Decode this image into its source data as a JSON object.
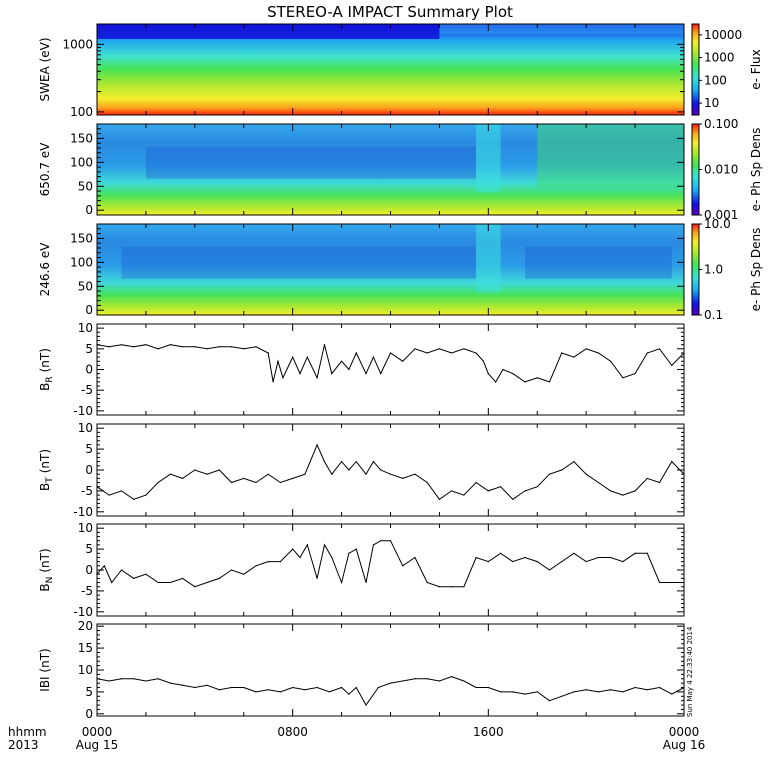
{
  "title": "STEREO-A IMPACT Summary Plot",
  "time_axis": {
    "row1_label": "hhmm",
    "row2_label": "2013",
    "ticks": [
      {
        "time": "0000",
        "date": "Aug 15",
        "hours": 0
      },
      {
        "time": "0800",
        "date": "",
        "hours": 8
      },
      {
        "time": "1600",
        "date": "",
        "hours": 16
      },
      {
        "time": "0000",
        "date": "Aug 16",
        "hours": 24
      }
    ]
  },
  "timestamp": "Sun May  4 22:33:40 2014",
  "colors": {
    "axes": "#000000",
    "line": "#000000"
  },
  "chart_data": [
    {
      "type": "heatmap",
      "ylabel": "SWEA (eV)",
      "yscale": "log",
      "ylim": [
        90,
        2000
      ],
      "yticks": [
        {
          "value": 100,
          "label": "100"
        },
        {
          "value": 1000,
          "label": "1000"
        }
      ],
      "colorbar": {
        "label": "e- Flux",
        "scale": "log",
        "range": [
          3,
          30000
        ],
        "ticks": [
          {
            "value": 10,
            "label": "10"
          },
          {
            "value": 100,
            "label": "100"
          },
          {
            "value": 1000,
            "label": "1000"
          },
          {
            "value": 10000,
            "label": "10000"
          }
        ]
      },
      "x_hours": [
        0,
        24
      ]
    },
    {
      "type": "heatmap",
      "ylabel": "650.7 eV",
      "yscale": "linear",
      "ylim": [
        -10,
        180
      ],
      "yticks": [
        {
          "value": 0,
          "label": "0"
        },
        {
          "value": 50,
          "label": "50"
        },
        {
          "value": 100,
          "label": "100"
        },
        {
          "value": 150,
          "label": "150"
        }
      ],
      "colorbar": {
        "label": "e- Ph Sp Dens",
        "scale": "log",
        "range": [
          0.001,
          0.1
        ],
        "ticks": [
          {
            "value": 0.001,
            "label": "0.001"
          },
          {
            "value": 0.01,
            "label": "0.010"
          },
          {
            "value": 0.1,
            "label": "0.100"
          }
        ]
      },
      "x_hours": [
        0,
        24
      ]
    },
    {
      "type": "heatmap",
      "ylabel": "246.6 eV",
      "yscale": "linear",
      "ylim": [
        -10,
        180
      ],
      "yticks": [
        {
          "value": 0,
          "label": "0"
        },
        {
          "value": 50,
          "label": "50"
        },
        {
          "value": 100,
          "label": "100"
        },
        {
          "value": 150,
          "label": "150"
        }
      ],
      "colorbar": {
        "label": "e- Ph Sp Dens",
        "scale": "log",
        "range": [
          0.1,
          10
        ],
        "ticks": [
          {
            "value": 0.1,
            "label": "0.1"
          },
          {
            "value": 1,
            "label": "1.0"
          },
          {
            "value": 10,
            "label": "10.0"
          }
        ]
      },
      "x_hours": [
        0,
        24
      ]
    },
    {
      "type": "line",
      "ylabel": "B_R (nT)",
      "ylabel_main": "B",
      "ylabel_sub": "R",
      "ylabel_unit": "(nT)",
      "ylim": [
        -11,
        11
      ],
      "yticks": [
        {
          "value": -10,
          "label": "-10"
        },
        {
          "value": -5,
          "label": "-5"
        },
        {
          "value": 0,
          "label": "0"
        },
        {
          "value": 5,
          "label": "5"
        },
        {
          "value": 10,
          "label": "10"
        }
      ],
      "x": [
        0,
        0.5,
        1,
        1.5,
        2,
        2.5,
        3,
        3.5,
        4,
        4.5,
        5,
        5.5,
        6,
        6.5,
        7,
        7.2,
        7.4,
        7.6,
        8,
        8.3,
        8.6,
        9,
        9.3,
        9.6,
        10,
        10.3,
        10.6,
        11,
        11.3,
        11.6,
        12,
        12.5,
        13,
        13.5,
        14,
        14.5,
        15,
        15.5,
        15.8,
        16,
        16.3,
        16.6,
        17,
        17.5,
        18,
        18.5,
        19,
        19.5,
        20,
        20.5,
        21,
        21.5,
        22,
        22.5,
        23,
        23.5,
        24
      ],
      "y": [
        6,
        5.5,
        6,
        5.5,
        6,
        5,
        6,
        5.5,
        5.5,
        5,
        5.5,
        5.5,
        5,
        5.5,
        4,
        -3,
        2,
        -2,
        3,
        -1,
        3,
        -2,
        6,
        -1,
        2,
        0,
        4,
        -1,
        3,
        -1,
        4,
        2,
        5,
        4,
        5,
        4,
        5,
        4,
        2,
        -1,
        -3,
        0,
        -1,
        -3,
        -2,
        -3,
        4,
        3,
        5,
        4,
        2,
        -2,
        -1,
        4,
        5,
        1,
        4
      ]
    },
    {
      "type": "line",
      "ylabel": "B_T (nT)",
      "ylabel_main": "B",
      "ylabel_sub": "T",
      "ylabel_unit": "(nT)",
      "ylim": [
        -11,
        11
      ],
      "yticks": [
        {
          "value": -10,
          "label": "-10"
        },
        {
          "value": -5,
          "label": "-5"
        },
        {
          "value": 0,
          "label": "0"
        },
        {
          "value": 5,
          "label": "5"
        },
        {
          "value": 10,
          "label": "10"
        }
      ],
      "x": [
        0,
        0.5,
        1,
        1.5,
        2,
        2.5,
        3,
        3.5,
        4,
        4.5,
        5,
        5.5,
        6,
        6.5,
        7,
        7.5,
        8,
        8.5,
        9,
        9.3,
        9.6,
        10,
        10.3,
        10.6,
        11,
        11.3,
        11.6,
        12,
        12.5,
        13,
        13.5,
        14,
        14.5,
        15,
        15.5,
        16,
        16.5,
        17,
        17.5,
        18,
        18.5,
        19,
        19.5,
        20,
        20.5,
        21,
        21.5,
        22,
        22.5,
        23,
        23.5,
        24
      ],
      "y": [
        -4,
        -6,
        -5,
        -7,
        -6,
        -3,
        -1,
        -2,
        0,
        -1,
        0,
        -3,
        -2,
        -3,
        -1,
        -3,
        -2,
        -1,
        6,
        2,
        -1,
        2,
        0,
        2,
        -1,
        2,
        0,
        -1,
        -2,
        -1,
        -3,
        -7,
        -5,
        -6,
        -3,
        -5,
        -4,
        -7,
        -5,
        -4,
        -1,
        0,
        2,
        -1,
        -3,
        -5,
        -6,
        -5,
        -2,
        -3,
        2,
        -1
      ]
    },
    {
      "type": "line",
      "ylabel": "B_N (nT)",
      "ylabel_main": "B",
      "ylabel_sub": "N",
      "ylabel_unit": "(nT)",
      "ylim": [
        -11,
        11
      ],
      "yticks": [
        {
          "value": -10,
          "label": "-10"
        },
        {
          "value": -5,
          "label": "-5"
        },
        {
          "value": 0,
          "label": "0"
        },
        {
          "value": 5,
          "label": "5"
        },
        {
          "value": 10,
          "label": "10"
        }
      ],
      "x": [
        0,
        0.3,
        0.6,
        1,
        1.5,
        2,
        2.5,
        3,
        3.5,
        4,
        4.5,
        5,
        5.5,
        6,
        6.5,
        7,
        7.5,
        8,
        8.3,
        8.6,
        9,
        9.3,
        9.6,
        10,
        10.3,
        10.6,
        11,
        11.3,
        11.6,
        12,
        12.5,
        13,
        13.5,
        14,
        14.5,
        15,
        15.5,
        16,
        16.5,
        17,
        17.5,
        18,
        18.5,
        19,
        19.5,
        20,
        20.5,
        21,
        21.5,
        22,
        22.5,
        23,
        23.5,
        24
      ],
      "y": [
        -1,
        1,
        -3,
        0,
        -2,
        -1,
        -3,
        -3,
        -2,
        -4,
        -3,
        -2,
        0,
        -1,
        1,
        2,
        2,
        5,
        3,
        6,
        -2,
        6,
        3,
        -3,
        4,
        5,
        -3,
        6,
        7,
        7,
        1,
        3,
        -3,
        -4,
        -4,
        -4,
        3,
        2,
        4,
        2,
        3,
        2,
        0,
        2,
        4,
        2,
        3,
        3,
        2,
        4,
        4,
        -3,
        -3,
        -3
      ]
    },
    {
      "type": "line",
      "ylabel": "|B| (nT)",
      "ylabel_text": "IBI (nT)",
      "ylim": [
        -0.5,
        20.5
      ],
      "yticks": [
        {
          "value": 0,
          "label": "0"
        },
        {
          "value": 5,
          "label": "5"
        },
        {
          "value": 10,
          "label": "10"
        },
        {
          "value": 15,
          "label": "15"
        },
        {
          "value": 20,
          "label": "20"
        }
      ],
      "x": [
        0,
        0.5,
        1,
        1.5,
        2,
        2.5,
        3,
        3.5,
        4,
        4.5,
        5,
        5.5,
        6,
        6.5,
        7,
        7.5,
        8,
        8.5,
        9,
        9.5,
        10,
        10.3,
        10.6,
        11,
        11.5,
        12,
        12.5,
        13,
        13.5,
        14,
        14.5,
        15,
        15.5,
        16,
        16.5,
        17,
        17.5,
        18,
        18.5,
        19,
        19.5,
        20,
        20.5,
        21,
        21.5,
        22,
        22.5,
        23,
        23.5,
        24
      ],
      "y": [
        8,
        7.5,
        8,
        8,
        7.5,
        8,
        7,
        6.5,
        6,
        6.5,
        5.5,
        6,
        6,
        5,
        5.5,
        5,
        6,
        5.5,
        6,
        5,
        6,
        4.5,
        6,
        2,
        6,
        7,
        7.5,
        8,
        8,
        7.5,
        8.5,
        7.5,
        6,
        6,
        5,
        5,
        4.5,
        5,
        3,
        4,
        5,
        5.5,
        5,
        5.5,
        5,
        6,
        5.5,
        6,
        4.5,
        6
      ]
    }
  ]
}
